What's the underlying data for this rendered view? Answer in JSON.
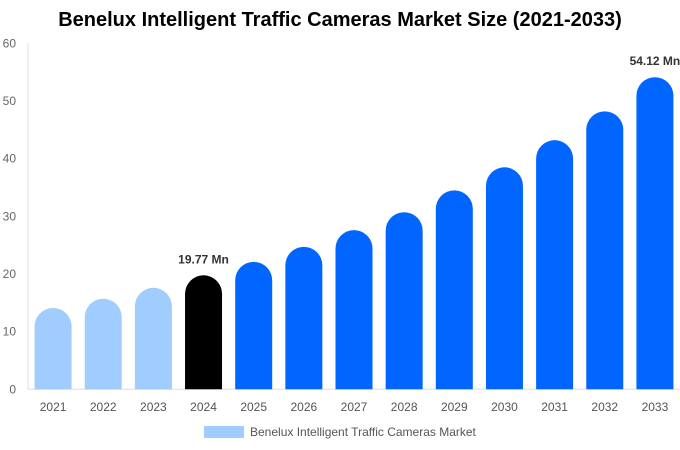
{
  "chart_data": {
    "type": "bar",
    "title": "Benelux Intelligent Traffic Cameras Market Size (2021-2033)",
    "categories": [
      "2021",
      "2022",
      "2023",
      "2024",
      "2025",
      "2026",
      "2027",
      "2028",
      "2029",
      "2030",
      "2031",
      "2032",
      "2033"
    ],
    "series": [
      {
        "name": "Benelux Intelligent Traffic Cameras Market",
        "values": [
          14.1,
          15.7,
          17.6,
          19.77,
          22.1,
          24.7,
          27.6,
          30.7,
          34.5,
          38.5,
          43.2,
          48.2,
          54.12
        ]
      }
    ],
    "data_labels": {
      "2024": "19.77 Mn",
      "2033": "54.12 Mn"
    },
    "ylim": [
      0,
      60
    ],
    "yticks": [
      0,
      10,
      20,
      30,
      40,
      50,
      60
    ],
    "grid": false,
    "legend": "bottom",
    "colors": {
      "historical": "#a0cdfd",
      "base_year": "#000000",
      "forecast": "#0066ff"
    }
  }
}
